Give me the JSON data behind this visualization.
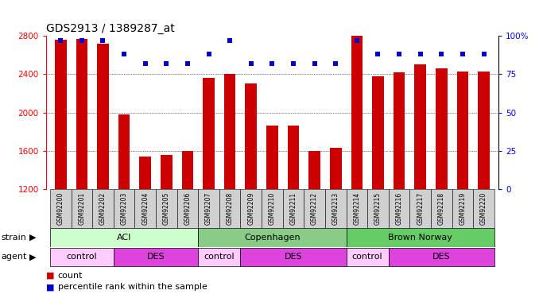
{
  "title": "GDS2913 / 1389287_at",
  "samples": [
    "GSM92200",
    "GSM92201",
    "GSM92202",
    "GSM92203",
    "GSM92204",
    "GSM92205",
    "GSM92206",
    "GSM92207",
    "GSM92208",
    "GSM92209",
    "GSM92210",
    "GSM92211",
    "GSM92212",
    "GSM92213",
    "GSM92214",
    "GSM92215",
    "GSM92216",
    "GSM92217",
    "GSM92218",
    "GSM92219",
    "GSM92220"
  ],
  "counts": [
    2760,
    2770,
    2720,
    1980,
    1540,
    1560,
    1600,
    2360,
    2400,
    2300,
    1860,
    1860,
    1600,
    1630,
    2800,
    2380,
    2420,
    2500,
    2460,
    2430,
    2430
  ],
  "percentiles": [
    97,
    97,
    97,
    88,
    82,
    82,
    82,
    88,
    97,
    82,
    82,
    82,
    82,
    82,
    97,
    88,
    88,
    88,
    88,
    88,
    88
  ],
  "ymin": 1200,
  "ymax": 2800,
  "yticks_left": [
    1200,
    1600,
    2000,
    2400,
    2800
  ],
  "yticks_right": [
    0,
    25,
    50,
    75,
    100
  ],
  "bar_color": "#cc0000",
  "dot_color": "#0000cc",
  "plot_bg": "#ffffff",
  "tick_label_bg": "#d0d0d0",
  "strain_colors": {
    "ACI": "#ccffcc",
    "Copenhagen": "#88cc88",
    "Brown Norway": "#66cc66"
  },
  "strain_groups": [
    {
      "label": "ACI",
      "start": 0,
      "end": 6
    },
    {
      "label": "Copenhagen",
      "start": 7,
      "end": 13
    },
    {
      "label": "Brown Norway",
      "start": 14,
      "end": 20
    }
  ],
  "agent_colors": {
    "control": "#ffccff",
    "DES": "#dd44dd"
  },
  "agent_groups": [
    {
      "label": "control",
      "start": 0,
      "end": 2
    },
    {
      "label": "DES",
      "start": 3,
      "end": 6
    },
    {
      "label": "control",
      "start": 7,
      "end": 8
    },
    {
      "label": "DES",
      "start": 9,
      "end": 13
    },
    {
      "label": "control",
      "start": 14,
      "end": 15
    },
    {
      "label": "DES",
      "start": 16,
      "end": 20
    }
  ],
  "legend_count_color": "#cc0000",
  "legend_pct_color": "#0000cc",
  "title_fontsize": 10,
  "bar_width": 0.55,
  "grid_lines": [
    1600,
    2000,
    2400
  ]
}
